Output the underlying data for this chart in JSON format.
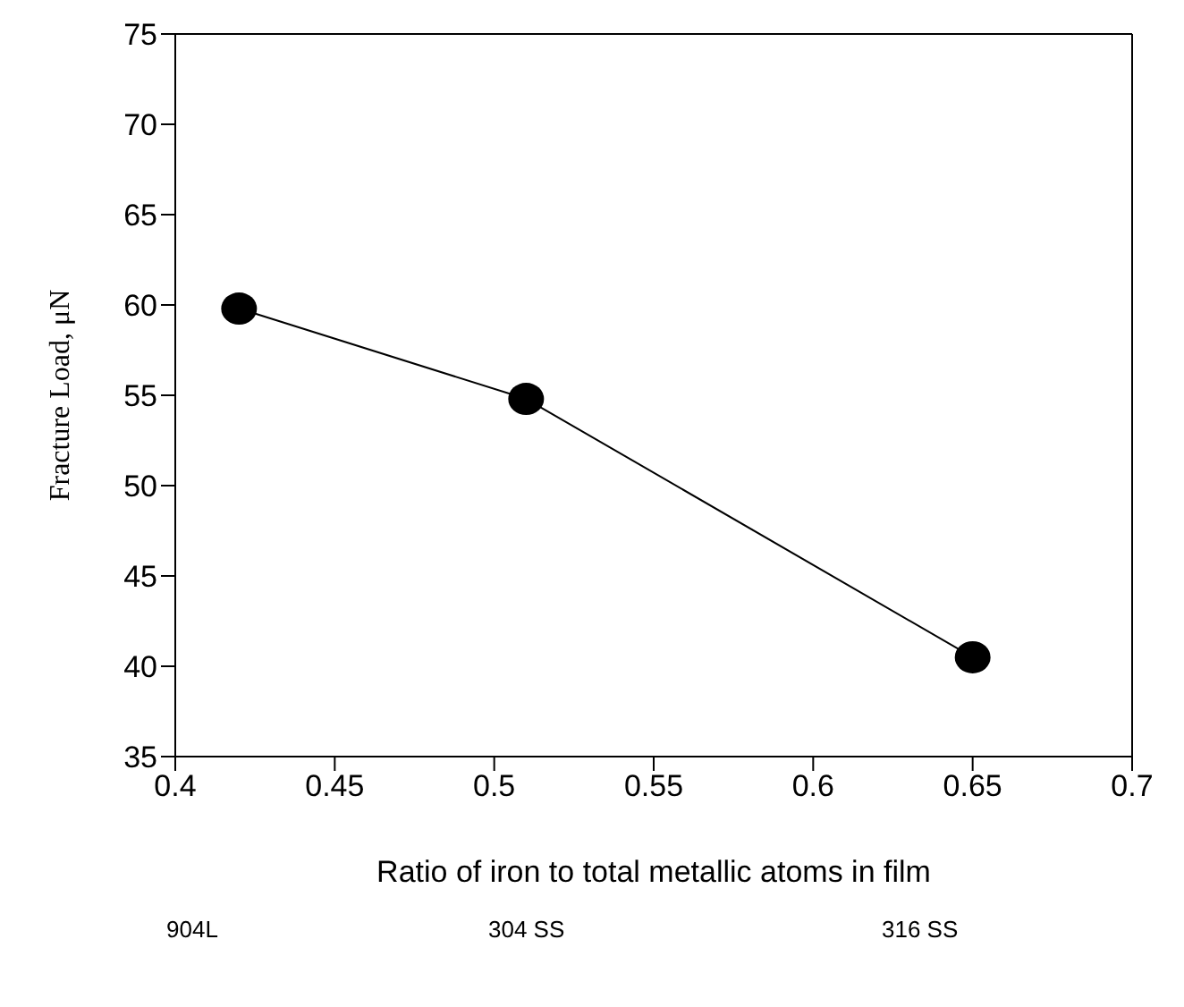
{
  "chart_data": {
    "type": "line",
    "xlabel": "Ratio of iron to total metallic atoms in film",
    "ylabel": "Fracture Load, μN",
    "x": [
      0.42,
      0.51,
      0.65
    ],
    "series": [
      {
        "color": "#000000",
        "values": [
          59.8,
          54.8,
          40.5
        ]
      }
    ],
    "xlim": [
      0.4,
      0.7
    ],
    "xticks": [
      0.4,
      0.45,
      0.5,
      0.55,
      0.6,
      0.65,
      0.7
    ],
    "ylim": [
      35,
      75
    ],
    "yticks": [
      35,
      40,
      45,
      50,
      55,
      60,
      65,
      70,
      75
    ],
    "marker": "circle",
    "line_style": "solid",
    "grid": false,
    "legend": false,
    "annotations": [
      "904L",
      "304 SS",
      "316 SS"
    ]
  }
}
